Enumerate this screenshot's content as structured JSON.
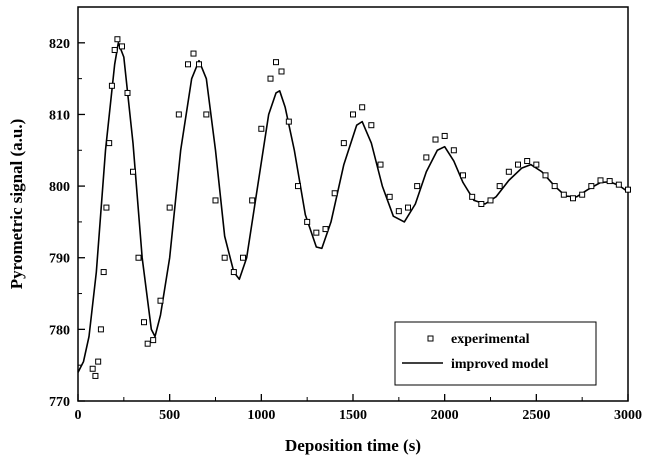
{
  "chart_data": {
    "type": "scatter",
    "title": "",
    "xlabel": "Deposition time (s)",
    "ylabel": "Pyrometric signal (a.u.)",
    "xlim": [
      0,
      3000
    ],
    "ylim": [
      770,
      825
    ],
    "x_ticks": [
      0,
      500,
      1000,
      1500,
      2000,
      2500,
      3000
    ],
    "y_ticks": [
      770,
      780,
      790,
      800,
      810,
      820
    ],
    "x_tick_labels": [
      "0",
      "500",
      "1000",
      "1500",
      "2000",
      "2500",
      "3000"
    ],
    "y_tick_labels": [
      "770",
      "780",
      "790",
      "800",
      "810",
      "820"
    ],
    "grid": false,
    "legend_position": "bottom-right",
    "series": [
      {
        "name": "experimental",
        "style": "open-square-markers",
        "points": [
          [
            80,
            774.5
          ],
          [
            95,
            773.5
          ],
          [
            110,
            775.5
          ],
          [
            125,
            780
          ],
          [
            140,
            788
          ],
          [
            155,
            797
          ],
          [
            170,
            806
          ],
          [
            185,
            814
          ],
          [
            200,
            819
          ],
          [
            215,
            820.5
          ],
          [
            240,
            819.5
          ],
          [
            270,
            813
          ],
          [
            300,
            802
          ],
          [
            330,
            790
          ],
          [
            360,
            781
          ],
          [
            380,
            778
          ],
          [
            410,
            778.5
          ],
          [
            450,
            784
          ],
          [
            500,
            797
          ],
          [
            550,
            810
          ],
          [
            600,
            817
          ],
          [
            630,
            818.5
          ],
          [
            660,
            817
          ],
          [
            700,
            810
          ],
          [
            750,
            798
          ],
          [
            800,
            790
          ],
          [
            850,
            788
          ],
          [
            900,
            790
          ],
          [
            950,
            798
          ],
          [
            1000,
            808
          ],
          [
            1050,
            815
          ],
          [
            1080,
            817.3
          ],
          [
            1110,
            816
          ],
          [
            1150,
            809
          ],
          [
            1200,
            800
          ],
          [
            1250,
            795
          ],
          [
            1300,
            793.5
          ],
          [
            1350,
            794
          ],
          [
            1400,
            799
          ],
          [
            1450,
            806
          ],
          [
            1500,
            810
          ],
          [
            1550,
            811
          ],
          [
            1600,
            808.5
          ],
          [
            1650,
            803
          ],
          [
            1700,
            798.5
          ],
          [
            1750,
            796.5
          ],
          [
            1800,
            797
          ],
          [
            1850,
            800
          ],
          [
            1900,
            804
          ],
          [
            1950,
            806.5
          ],
          [
            2000,
            807
          ],
          [
            2050,
            805
          ],
          [
            2100,
            801.5
          ],
          [
            2150,
            798.5
          ],
          [
            2200,
            797.5
          ],
          [
            2250,
            798
          ],
          [
            2300,
            800
          ],
          [
            2350,
            802
          ],
          [
            2400,
            803
          ],
          [
            2450,
            803.5
          ],
          [
            2500,
            803
          ],
          [
            2550,
            801.5
          ],
          [
            2600,
            800
          ],
          [
            2650,
            798.8
          ],
          [
            2700,
            798.3
          ],
          [
            2750,
            798.8
          ],
          [
            2800,
            800
          ],
          [
            2850,
            800.8
          ],
          [
            2900,
            800.7
          ],
          [
            2950,
            800.2
          ],
          [
            3000,
            799.5
          ]
        ]
      },
      {
        "name": "improved model",
        "style": "solid-line",
        "points": [
          [
            0,
            774
          ],
          [
            30,
            775.5
          ],
          [
            60,
            779
          ],
          [
            100,
            788
          ],
          [
            150,
            805
          ],
          [
            200,
            817
          ],
          [
            220,
            820
          ],
          [
            250,
            818
          ],
          [
            300,
            806
          ],
          [
            350,
            790
          ],
          [
            400,
            780
          ],
          [
            420,
            779
          ],
          [
            450,
            782
          ],
          [
            500,
            790
          ],
          [
            560,
            805
          ],
          [
            620,
            815
          ],
          [
            660,
            817.5
          ],
          [
            700,
            815
          ],
          [
            750,
            805
          ],
          [
            800,
            793
          ],
          [
            850,
            788
          ],
          [
            880,
            787
          ],
          [
            920,
            790
          ],
          [
            980,
            800
          ],
          [
            1040,
            810
          ],
          [
            1080,
            813
          ],
          [
            1100,
            813.3
          ],
          [
            1130,
            811
          ],
          [
            1180,
            805
          ],
          [
            1240,
            796
          ],
          [
            1300,
            791.5
          ],
          [
            1330,
            791.3
          ],
          [
            1380,
            795
          ],
          [
            1450,
            803
          ],
          [
            1520,
            808.5
          ],
          [
            1550,
            809
          ],
          [
            1600,
            806
          ],
          [
            1660,
            800
          ],
          [
            1720,
            795.8
          ],
          [
            1780,
            795
          ],
          [
            1840,
            797.5
          ],
          [
            1900,
            802
          ],
          [
            1960,
            805
          ],
          [
            2000,
            805.5
          ],
          [
            2050,
            803.5
          ],
          [
            2100,
            800.5
          ],
          [
            2160,
            798
          ],
          [
            2220,
            797.5
          ],
          [
            2280,
            798.5
          ],
          [
            2350,
            800.8
          ],
          [
            2420,
            802.5
          ],
          [
            2470,
            803
          ],
          [
            2530,
            802
          ],
          [
            2600,
            800
          ],
          [
            2660,
            798.6
          ],
          [
            2720,
            798.5
          ],
          [
            2780,
            799.5
          ],
          [
            2850,
            800.5
          ],
          [
            2900,
            800.6
          ],
          [
            2950,
            800.1
          ],
          [
            3000,
            799.2
          ]
        ]
      }
    ]
  }
}
